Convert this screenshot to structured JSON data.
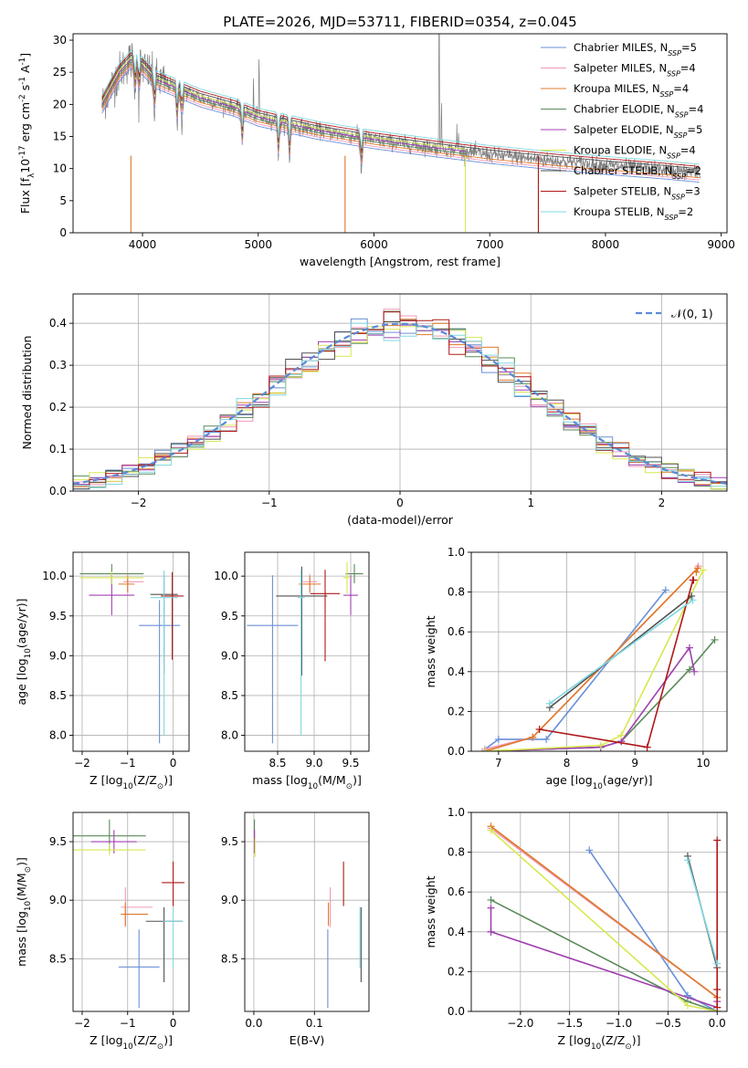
{
  "figure": {
    "title": "PLATE=2026, MJD=53711, FIBERID=0354, z=0.045"
  },
  "colors": {
    "Chabrier MILES": "#6a8fd8",
    "Salpeter MILES": "#f09ab8",
    "Kroupa MILES": "#e07828",
    "Chabrier ELODIE": "#5a8a5a",
    "Salpeter ELODIE": "#a040b0",
    "Kroupa ELODIE": "#d8e850",
    "Chabrier STELIB": "#505050",
    "Salpeter STELIB": "#b01818",
    "Kroupa STELIB": "#80d8e0",
    "data": "#808080",
    "gauss": "#5a8ad8"
  },
  "chart_data": [
    {
      "id": "spectrum",
      "type": "line",
      "xlabel": "wavelength [Angstrom, rest frame]",
      "ylabel": "Flux [f$_\\lambda$10$^{-17}$ erg cm$^{-2}$ s$^{-1}$ A$^{-1}$]",
      "xlim": [
        3400,
        9050
      ],
      "ylim": [
        0,
        31
      ],
      "xticks": [
        "4000",
        "5000",
        "6000",
        "7000",
        "8000",
        "9000"
      ],
      "yticks": [
        "0",
        "5",
        "10",
        "15",
        "20",
        "25",
        "30"
      ],
      "legend_position": "top-right",
      "legend": [
        {
          "base": "Chabrier MILES, N",
          "sub": "SSP",
          "tail": "=5"
        },
        {
          "base": "Salpeter MILES, N",
          "sub": "SSP",
          "tail": "=4"
        },
        {
          "base": "Kroupa MILES, N",
          "sub": "SSP",
          "tail": "=4"
        },
        {
          "base": "Chabrier ELODIE, N",
          "sub": "SSP",
          "tail": "=4"
        },
        {
          "base": "Salpeter ELODIE, N",
          "sub": "SSP",
          "tail": "=5"
        },
        {
          "base": "Kroupa ELODIE, N",
          "sub": "SSP",
          "tail": "=4"
        },
        {
          "base": "Chabrier STELIB, N",
          "sub": "SSP",
          "tail": "=2"
        },
        {
          "base": "Salpeter STELIB, N",
          "sub": "SSP",
          "tail": "=3"
        },
        {
          "base": "Kroupa STELIB, N",
          "sub": "SSP",
          "tail": "=2"
        }
      ],
      "continuum": {
        "x": [
          3650,
          3800,
          3900,
          4000,
          4100,
          4300,
          4500,
          4800,
          5000,
          5500,
          6000,
          6500,
          7000,
          7500,
          8000,
          8500,
          8800
        ],
        "y": [
          20,
          25,
          27,
          26,
          24,
          22.5,
          21,
          19.5,
          18,
          16,
          14.5,
          13.3,
          12.2,
          11.3,
          10.5,
          9.8,
          9.3
        ]
      }
    },
    {
      "id": "residuals",
      "type": "line",
      "xlabel": "(data-model)/error",
      "ylabel": "Normed distribution",
      "xlim": [
        -2.5,
        2.5
      ],
      "ylim": [
        0,
        0.47
      ],
      "xticks": [
        "−2",
        "−1",
        "0",
        "1",
        "2"
      ],
      "yticks": [
        "0.0",
        "0.1",
        "0.2",
        "0.3",
        "0.4"
      ],
      "grid": true,
      "legend_position": "top-right",
      "legend_label": "𝒩(0, 1)",
      "bins": 40
    },
    {
      "id": "age_vs_Z",
      "type": "scatter",
      "xlabel": "Z [log$_{10}$(Z/Z$_\\odot$)]",
      "ylabel": "age  [log$_{10}$(age/yr)]",
      "xlim": [
        -2.2,
        0.35
      ],
      "ylim": [
        7.8,
        10.3
      ],
      "xticks": [
        "−2",
        "−1",
        "0"
      ],
      "yticks": [
        "8.0",
        "8.5",
        "9.0",
        "9.5",
        "10.0"
      ],
      "grid": true,
      "points": [
        {
          "m": "Chabrier MILES",
          "x": -0.3,
          "y": 9.38,
          "xerr": 0.45,
          "yerr": [
            1.48,
            0.32
          ]
        },
        {
          "m": "Salpeter MILES",
          "x": -1.0,
          "y": 9.93,
          "xerr": [
            0.1,
            0.35
          ],
          "yerr": [
            0.15,
            0.1
          ]
        },
        {
          "m": "Kroupa MILES",
          "x": -1.0,
          "y": 9.9,
          "xerr": [
            0.2,
            0.15
          ],
          "yerr": 0.1
        },
        {
          "m": "Chabrier ELODIE",
          "x": -1.35,
          "y": 10.03,
          "xerr": 0.7,
          "yerr": 0.12
        },
        {
          "m": "Salpeter ELODIE",
          "x": -1.35,
          "y": 9.76,
          "xerr": 0.5,
          "yerr": 0.25
        },
        {
          "m": "Kroupa ELODIE",
          "x": -1.35,
          "y": 9.98,
          "xerr": 0.7,
          "yerr": 0.08
        },
        {
          "m": "Chabrier STELIB",
          "x": -0.2,
          "y": 9.77,
          "xerr": 0.3,
          "yerr": [
            1.0,
            0.25
          ]
        },
        {
          "m": "Salpeter STELIB",
          "x": -0.02,
          "y": 9.75,
          "xerr": 0.25,
          "yerr": [
            0.8,
            0.3
          ]
        },
        {
          "m": "Kroupa STELIB",
          "x": -0.2,
          "y": 9.73,
          "xerr": 0.3,
          "yerr": [
            1.73,
            0.34
          ]
        }
      ]
    },
    {
      "id": "age_vs_mass",
      "type": "scatter",
      "xlabel": "mass [log$_{10}$(M/M$_\\odot$)]",
      "ylabel": "",
      "xlim": [
        8.05,
        9.75
      ],
      "ylim": [
        7.8,
        10.3
      ],
      "xticks": [
        "8.5",
        "9.0",
        "9.5"
      ],
      "yticks": [
        "8.0",
        "8.5",
        "9.0",
        "9.5",
        "10.0"
      ],
      "grid": true,
      "points": [
        {
          "m": "Chabrier MILES",
          "x": 8.43,
          "y": 9.38,
          "xerr": 0.35,
          "yerr": [
            1.48,
            0.63
          ]
        },
        {
          "m": "Salpeter MILES",
          "x": 8.94,
          "y": 9.93,
          "xerr": 0.1,
          "yerr": [
            0.15,
            0.1
          ]
        },
        {
          "m": "Kroupa MILES",
          "x": 8.94,
          "y": 9.9,
          "xerr": 0.15,
          "yerr": 0.1
        },
        {
          "m": "Chabrier ELODIE",
          "x": 9.55,
          "y": 10.03,
          "xerr": 0.12,
          "yerr": 0.12
        },
        {
          "m": "Salpeter ELODIE",
          "x": 9.5,
          "y": 9.76,
          "xerr": 0.1,
          "yerr": 0.25
        },
        {
          "m": "Kroupa ELODIE",
          "x": 9.45,
          "y": 9.98,
          "xerr": 0.05,
          "yerr": 0.2
        },
        {
          "m": "Chabrier STELIB",
          "x": 8.83,
          "y": 9.75,
          "xerr": 0.35,
          "yerr": [
            1.0,
            0.37
          ]
        },
        {
          "m": "Salpeter STELIB",
          "x": 9.15,
          "y": 9.78,
          "xerr": 0.2,
          "yerr": [
            0.85,
            0.3
          ]
        },
        {
          "m": "Kroupa STELIB",
          "x": 8.82,
          "y": 9.73,
          "xerr": 0.05,
          "yerr": [
            1.73,
            0.34
          ]
        }
      ]
    },
    {
      "id": "weight_vs_age",
      "type": "line",
      "xlabel": "age  [log$_{10}$(age/yr)]",
      "ylabel": "mass weight",
      "xlim": [
        6.6,
        10.35
      ],
      "ylim": [
        0,
        1.0
      ],
      "xticks": [
        "7",
        "8",
        "9",
        "10"
      ],
      "yticks": [
        "0.0",
        "0.2",
        "0.4",
        "0.6",
        "0.8",
        "1.0"
      ],
      "grid": true,
      "series": [
        {
          "m": "Chabrier MILES",
          "x": [
            6.8,
            7.0,
            7.7,
            9.45
          ],
          "y": [
            0.01,
            0.06,
            0.06,
            0.81
          ]
        },
        {
          "m": "Salpeter MILES",
          "x": [
            6.8,
            7.5,
            9.92,
            9.93
          ],
          "y": [
            0.01,
            0.07,
            0.92,
            0.93
          ]
        },
        {
          "m": "Kroupa MILES",
          "x": [
            6.8,
            7.5,
            9.92,
            9.9
          ],
          "y": [
            0.0,
            0.07,
            0.92,
            0.9
          ]
        },
        {
          "m": "Chabrier ELODIE",
          "x": [
            6.8,
            8.5,
            8.8,
            9.8,
            10.17
          ],
          "y": [
            0.0,
            0.02,
            0.05,
            0.41,
            0.56
          ]
        },
        {
          "m": "Salpeter ELODIE",
          "x": [
            6.8,
            8.5,
            8.8,
            9.8,
            9.87
          ],
          "y": [
            0.0,
            0.02,
            0.05,
            0.52,
            0.4
          ]
        },
        {
          "m": "Kroupa ELODIE",
          "x": [
            6.8,
            8.5,
            8.8,
            10.0
          ],
          "y": [
            0.0,
            0.03,
            0.08,
            0.91
          ]
        },
        {
          "m": "Chabrier STELIB",
          "x": [
            7.75,
            9.83
          ],
          "y": [
            0.22,
            0.78
          ]
        },
        {
          "m": "Salpeter STELIB",
          "x": [
            7.6,
            9.18,
            9.85,
            9.86
          ],
          "y": [
            0.11,
            0.02,
            0.86,
            0.86
          ]
        },
        {
          "m": "Kroupa STELIB",
          "x": [
            7.75,
            9.85
          ],
          "y": [
            0.24,
            0.76
          ]
        }
      ]
    },
    {
      "id": "mass_vs_Z",
      "type": "scatter",
      "xlabel": "Z [log$_{10}$(Z/Z$_\\odot$)]",
      "ylabel": "mass [log$_{10}$(M/M$_\\odot$)]",
      "xlim": [
        -2.2,
        0.35
      ],
      "ylim": [
        8.05,
        9.75
      ],
      "xticks": [
        "−2",
        "−1",
        "0"
      ],
      "yticks": [
        "8.5",
        "9.0",
        "9.5"
      ],
      "grid": true,
      "points": [
        {
          "m": "Chabrier MILES",
          "x": -0.75,
          "y": 8.43,
          "xerr": [
            0.45,
            0.45
          ],
          "yerr": [
            0.35,
            0.32
          ]
        },
        {
          "m": "Salpeter MILES",
          "x": -1.05,
          "y": 8.94,
          "xerr": [
            0.1,
            0.6
          ],
          "yerr": 0.17
        },
        {
          "m": "Kroupa MILES",
          "x": -1.05,
          "y": 8.88,
          "xerr": [
            0.1,
            0.5
          ],
          "yerr": 0.1
        },
        {
          "m": "Chabrier ELODIE",
          "x": -1.4,
          "y": 9.55,
          "xerr": 0.8,
          "yerr": 0.14
        },
        {
          "m": "Salpeter ELODIE",
          "x": -1.3,
          "y": 9.5,
          "xerr": 0.5,
          "yerr": 0.1
        },
        {
          "m": "Kroupa ELODIE",
          "x": -1.4,
          "y": 9.43,
          "xerr": 0.8,
          "yerr": 0.05
        },
        {
          "m": "Chabrier STELIB",
          "x": -0.2,
          "y": 8.82,
          "xerr": 0.4,
          "yerr": [
            0.52,
            0.12
          ]
        },
        {
          "m": "Salpeter STELIB",
          "x": 0.0,
          "y": 9.15,
          "xerr": 0.25,
          "yerr": [
            0.2,
            0.18
          ]
        },
        {
          "m": "Kroupa STELIB",
          "x": 0.0,
          "y": 8.82,
          "xerr": 0.22,
          "yerr": [
            0.4,
            0.12
          ]
        }
      ]
    },
    {
      "id": "mass_vs_EBV",
      "type": "scatter",
      "xlabel": "E(B-V)",
      "ylabel": "",
      "xlim": [
        -0.015,
        0.19
      ],
      "ylim": [
        8.05,
        9.75
      ],
      "xticks": [
        "0.0",
        "0.1"
      ],
      "yticks": [
        "8.5",
        "9.0",
        "9.5"
      ],
      "grid": true,
      "points": [
        {
          "m": "Chabrier MILES",
          "x": 0.122,
          "y": 8.43,
          "yerr": [
            0.35,
            0.32
          ]
        },
        {
          "m": "Salpeter MILES",
          "x": 0.126,
          "y": 8.94,
          "yerr": 0.17
        },
        {
          "m": "Kroupa MILES",
          "x": 0.123,
          "y": 8.88,
          "yerr": 0.1
        },
        {
          "m": "Chabrier ELODIE",
          "x": 0.001,
          "y": 9.55,
          "yerr": 0.14
        },
        {
          "m": "Salpeter ELODIE",
          "x": 0.001,
          "y": 9.5,
          "yerr": 0.1
        },
        {
          "m": "Kroupa ELODIE",
          "x": 0.002,
          "y": 9.45,
          "yerr": 0.08
        },
        {
          "m": "Chabrier STELIB",
          "x": 0.177,
          "y": 8.82,
          "yerr": [
            0.52,
            0.12
          ]
        },
        {
          "m": "Salpeter STELIB",
          "x": 0.148,
          "y": 9.15,
          "yerr": [
            0.2,
            0.18
          ]
        },
        {
          "m": "Kroupa STELIB",
          "x": 0.175,
          "y": 8.82,
          "yerr": [
            0.4,
            0.12
          ]
        }
      ]
    },
    {
      "id": "weight_vs_Z",
      "type": "line",
      "xlabel": "Z [log$_{10}$(Z/Z$_\\odot$)]",
      "ylabel": "mass weight",
      "xlim": [
        -2.5,
        0.1
      ],
      "ylim": [
        0,
        1.0
      ],
      "xticks": [
        "−2.0",
        "−1.5",
        "−1.0",
        "−0.5",
        "0.0"
      ],
      "yticks": [
        "0.0",
        "0.2",
        "0.4",
        "0.6",
        "0.8",
        "1.0"
      ],
      "grid": true,
      "series": [
        {
          "m": "Chabrier MILES",
          "x": [
            -1.3,
            -0.3,
            0.0
          ],
          "y": [
            0.81,
            0.08,
            0.0
          ]
        },
        {
          "m": "Salpeter MILES",
          "x": [
            -2.3,
            0.0
          ],
          "y": [
            0.92,
            0.07
          ]
        },
        {
          "m": "Kroupa MILES",
          "x": [
            -2.3,
            0.0
          ],
          "y": [
            0.93,
            0.07
          ]
        },
        {
          "m": "Chabrier ELODIE",
          "x": [
            -2.3,
            -0.3,
            0.0
          ],
          "y": [
            0.56,
            0.05,
            0.0
          ]
        },
        {
          "m": "Salpeter ELODIE",
          "x": [
            -2.3,
            -2.3,
            -2.3,
            0.0,
            0.0
          ],
          "y": [
            0.4,
            0.52,
            0.4,
            0.02,
            0.05
          ]
        },
        {
          "m": "Kroupa ELODIE",
          "x": [
            -2.3,
            -0.3,
            0.0
          ],
          "y": [
            0.91,
            0.03,
            0.0
          ]
        },
        {
          "m": "Chabrier STELIB",
          "x": [
            -0.3,
            0.0
          ],
          "y": [
            0.78,
            0.22
          ]
        },
        {
          "m": "Salpeter STELIB",
          "x": [
            0.0,
            0.0,
            0.0
          ],
          "y": [
            0.86,
            0.11,
            0.02
          ]
        },
        {
          "m": "Kroupa STELIB",
          "x": [
            -0.3,
            0.0
          ],
          "y": [
            0.76,
            0.24
          ]
        }
      ]
    }
  ]
}
